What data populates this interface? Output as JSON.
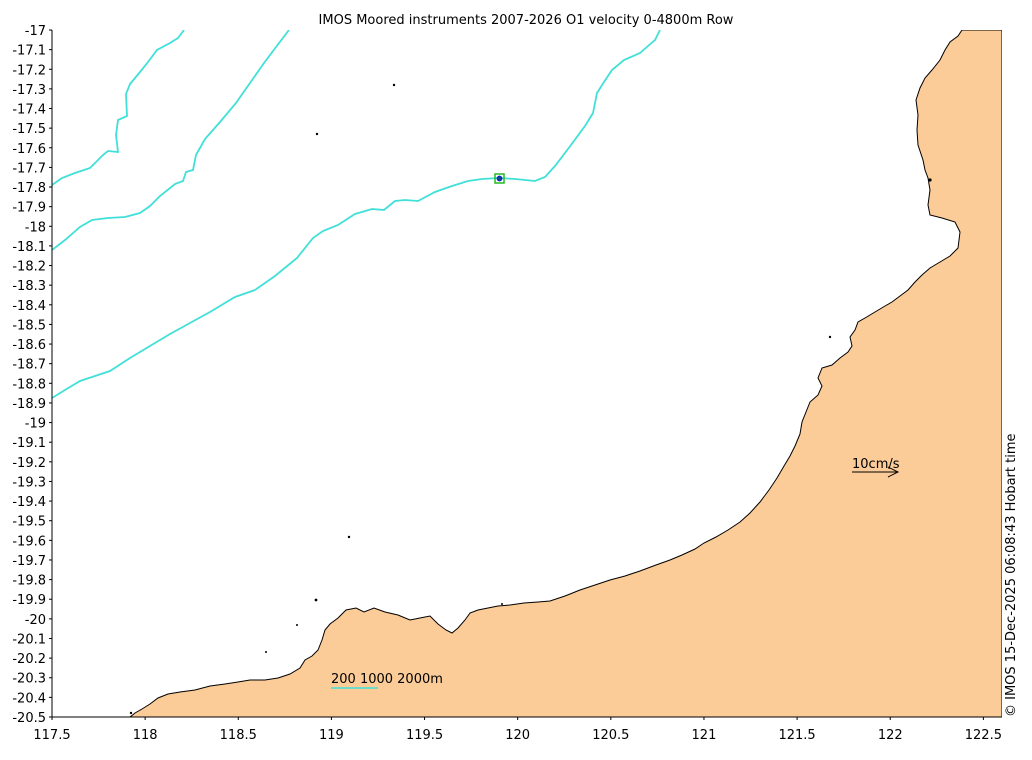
{
  "title": "IMOS Moored instruments 2007-2026 O1 velocity 0-4800m Row",
  "axes": {
    "x": {
      "min": 117.5,
      "max": 122.6,
      "ticks": [
        "117.5",
        "118",
        "118.5",
        "119",
        "119.5",
        "120",
        "120.5",
        "121",
        "121.5",
        "122",
        "122.5"
      ],
      "tick_values": [
        117.5,
        118,
        118.5,
        119,
        119.5,
        120,
        120.5,
        121,
        121.5,
        122,
        122.5
      ]
    },
    "y": {
      "min": -20.5,
      "max": -17,
      "ticks": [
        "-17",
        "-17.1",
        "-17.2",
        "-17.3",
        "-17.4",
        "-17.5",
        "-17.6",
        "-17.7",
        "-17.8",
        "-17.9",
        "-18",
        "-18.1",
        "-18.2",
        "-18.3",
        "-18.4",
        "-18.5",
        "-18.6",
        "-18.7",
        "-18.8",
        "-18.9",
        "-19",
        "-19.1",
        "-19.2",
        "-19.3",
        "-19.4",
        "-19.5",
        "-19.6",
        "-19.7",
        "-19.8",
        "-19.9",
        "-20",
        "-20.1",
        "-20.2",
        "-20.3",
        "-20.4",
        "-20.5"
      ]
    }
  },
  "mooring": {
    "lon": 119.91,
    "lat": -17.76
  },
  "scale_arrow": {
    "label": "10cm/s"
  },
  "legend": {
    "label": "200 1000 2000m"
  },
  "credit": "© IMOS 15-Dec-2025 06:08:43 Hobart time",
  "colors": {
    "land": "#fbcb98",
    "contour": "#40e0d8",
    "mooring": "#22bb22",
    "coast": "#000000"
  }
}
